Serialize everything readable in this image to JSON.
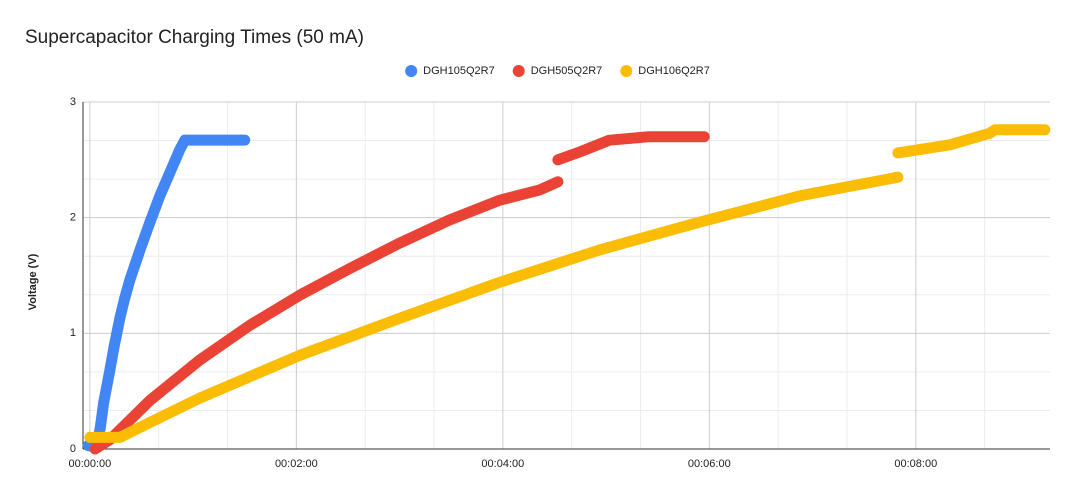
{
  "chart_data": {
    "type": "scatter",
    "title": "Supercapacitor Charging Times (50 mA)",
    "ylabel": "Voltage (V)",
    "xlim": [
      -4,
      558
    ],
    "ylim": [
      0,
      3
    ],
    "xticks": [
      {
        "value": 0,
        "label": "00:00:00"
      },
      {
        "value": 120,
        "label": "00:02:00"
      },
      {
        "value": 240,
        "label": "00:04:00"
      },
      {
        "value": 360,
        "label": "00:06:00"
      },
      {
        "value": 480,
        "label": "00:08:00"
      }
    ],
    "yticks": [
      0,
      1,
      2,
      3
    ],
    "grid": true,
    "minor_divisions": 3,
    "legend": "top",
    "series": [
      {
        "name": "DGH105Q2R7",
        "color": "#4285f4",
        "x": [
          -1,
          2,
          5,
          6,
          8,
          11.6,
          14,
          17.4,
          20,
          23.2,
          29.1,
          34.9,
          40.7,
          46.5,
          52.3,
          55.2,
          60,
          70,
          80,
          90
        ],
        "values": [
          0.03,
          0.02,
          0.1,
          0.18,
          0.4,
          0.68,
          0.88,
          1.13,
          1.29,
          1.46,
          1.72,
          1.96,
          2.19,
          2.39,
          2.59,
          2.67,
          2.67,
          2.67,
          2.67,
          2.67
        ]
      },
      {
        "name": "DGH505Q2R7",
        "color": "#ea4335",
        "x": [
          3,
          11.6,
          34.9,
          63.9,
          93,
          122,
          151,
          180,
          209,
          238,
          261.5,
          272,
          null,
          272,
          285,
          302,
          325,
          357
        ],
        "values": [
          0,
          0.08,
          0.42,
          0.77,
          1.07,
          1.33,
          1.56,
          1.78,
          1.98,
          2.15,
          2.24,
          2.31,
          null,
          2.5,
          2.57,
          2.67,
          2.7,
          2.7
        ]
      },
      {
        "name": "DGH106Q2R7",
        "color": "#fbbc04",
        "x": [
          0,
          17.4,
          34.9,
          63.9,
          122,
          180,
          238,
          296,
          354,
          413,
          469.6,
          null,
          469.6,
          499.8,
          523,
          526,
          555
        ],
        "values": [
          0.1,
          0.1,
          0.23,
          0.44,
          0.81,
          1.13,
          1.44,
          1.72,
          1.96,
          2.19,
          2.35,
          null,
          2.56,
          2.63,
          2.73,
          2.76,
          2.76
        ]
      }
    ]
  }
}
